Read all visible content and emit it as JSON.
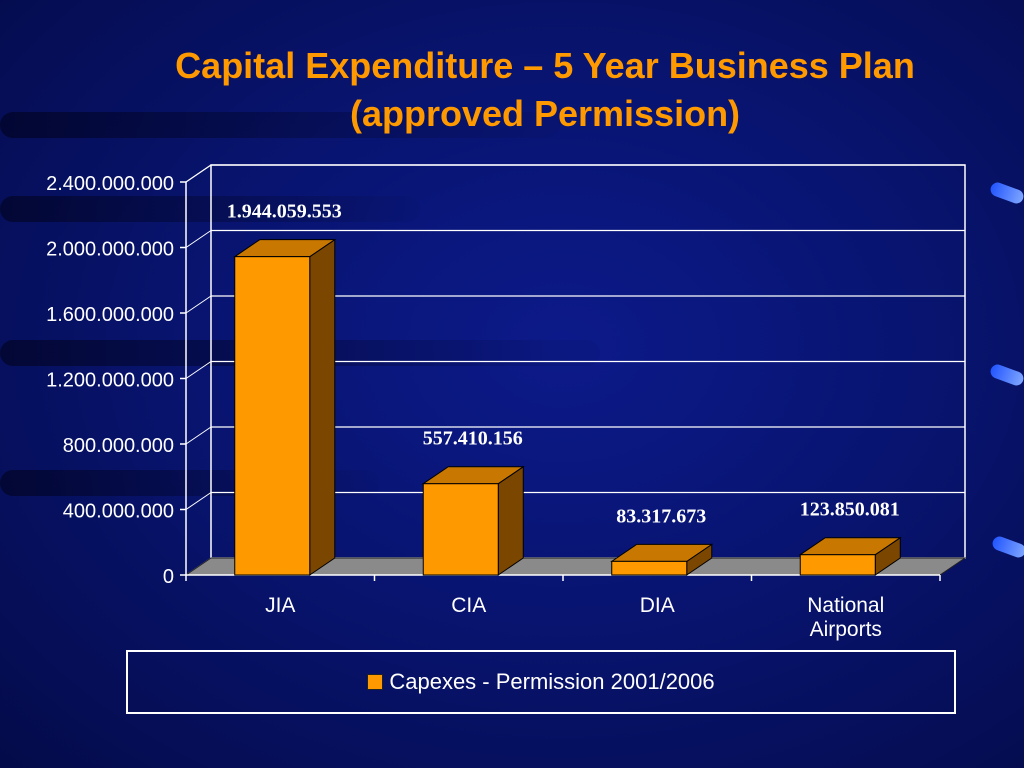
{
  "title_line1": "Capital Expenditure – 5 Year Business Plan",
  "title_line2": "(approved Permission)",
  "colors": {
    "bar_front": "#ff9900",
    "bar_side": "#7a4600",
    "bar_top": "#c87800",
    "floor": "#8a8a8a",
    "data_label": "#ffffff",
    "title": "#ff9900"
  },
  "chart_data": {
    "type": "bar",
    "categories": [
      "JIA",
      "CIA",
      "DIA",
      "National Airports"
    ],
    "series": [
      {
        "name": "Capexes - Permission 2001/2006",
        "values": [
          1944059553,
          557410156,
          83317673,
          123850081
        ]
      }
    ],
    "data_labels": [
      "1.944.059.553",
      "557.410.156",
      "83.317.673",
      "123.850.081"
    ],
    "y_ticks": [
      0,
      400000000,
      800000000,
      1200000000,
      1600000000,
      2000000000,
      2400000000
    ],
    "y_tick_labels": [
      "0",
      "400.000.000",
      "800.000.000",
      "1.200.000.000",
      "1.600.000.000",
      "2.000.000.000",
      "2.400.000.000"
    ],
    "ylim": [
      0,
      2400000000
    ],
    "grid": true,
    "legend_position": "bottom",
    "three_d": true
  }
}
